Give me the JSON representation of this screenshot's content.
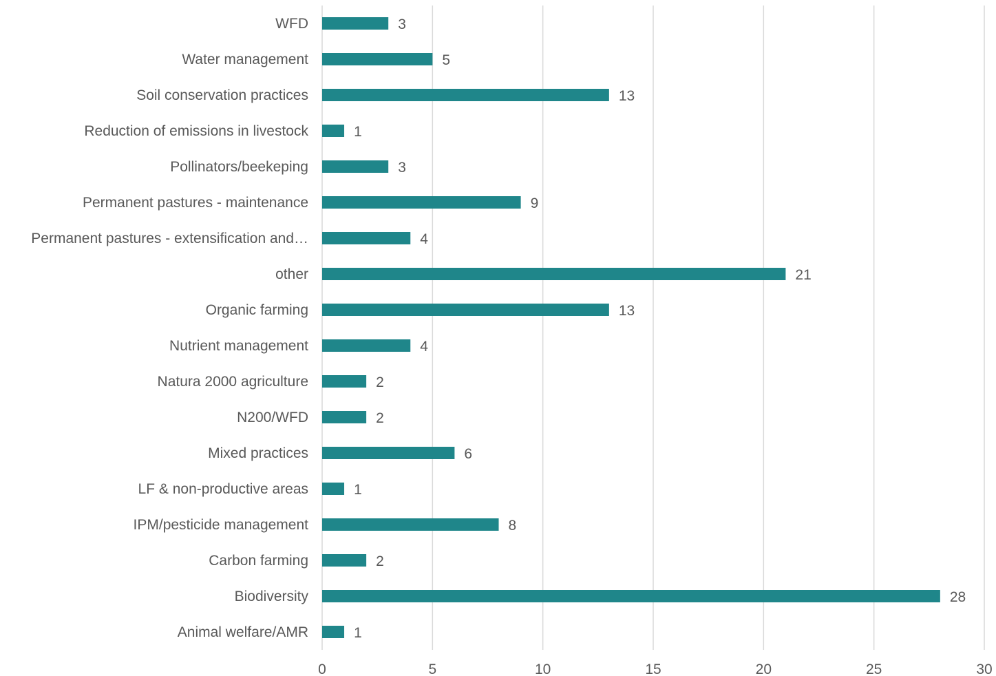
{
  "chart_data": {
    "type": "bar",
    "orientation": "horizontal",
    "title": "",
    "xlabel": "",
    "ylabel": "",
    "categories": [
      "WFD",
      "Water management",
      "Soil conservation practices",
      "Reduction of emissions in livestock",
      "Pollinators/beekeping",
      "Permanent pastures - maintenance",
      "Permanent pastures - extensification and…",
      "other",
      "Organic farming",
      "Nutrient management",
      "Natura 2000 agriculture",
      "N200/WFD",
      "Mixed practices",
      "LF & non-productive areas",
      "IPM/pesticide management",
      "Carbon farming",
      "Biodiversity",
      "Animal welfare/AMR"
    ],
    "values": [
      3,
      5,
      13,
      1,
      3,
      9,
      4,
      21,
      13,
      4,
      2,
      2,
      6,
      1,
      8,
      2,
      28,
      1
    ],
    "xlim": [
      0,
      30
    ],
    "xticks": [
      0,
      5,
      10,
      15,
      20,
      25,
      30
    ],
    "grid": "vertical",
    "legend": "none",
    "data_labels": true,
    "colors": {
      "bar": "#1f868a",
      "grid": "#d9d9d9",
      "text": "#595959"
    }
  }
}
